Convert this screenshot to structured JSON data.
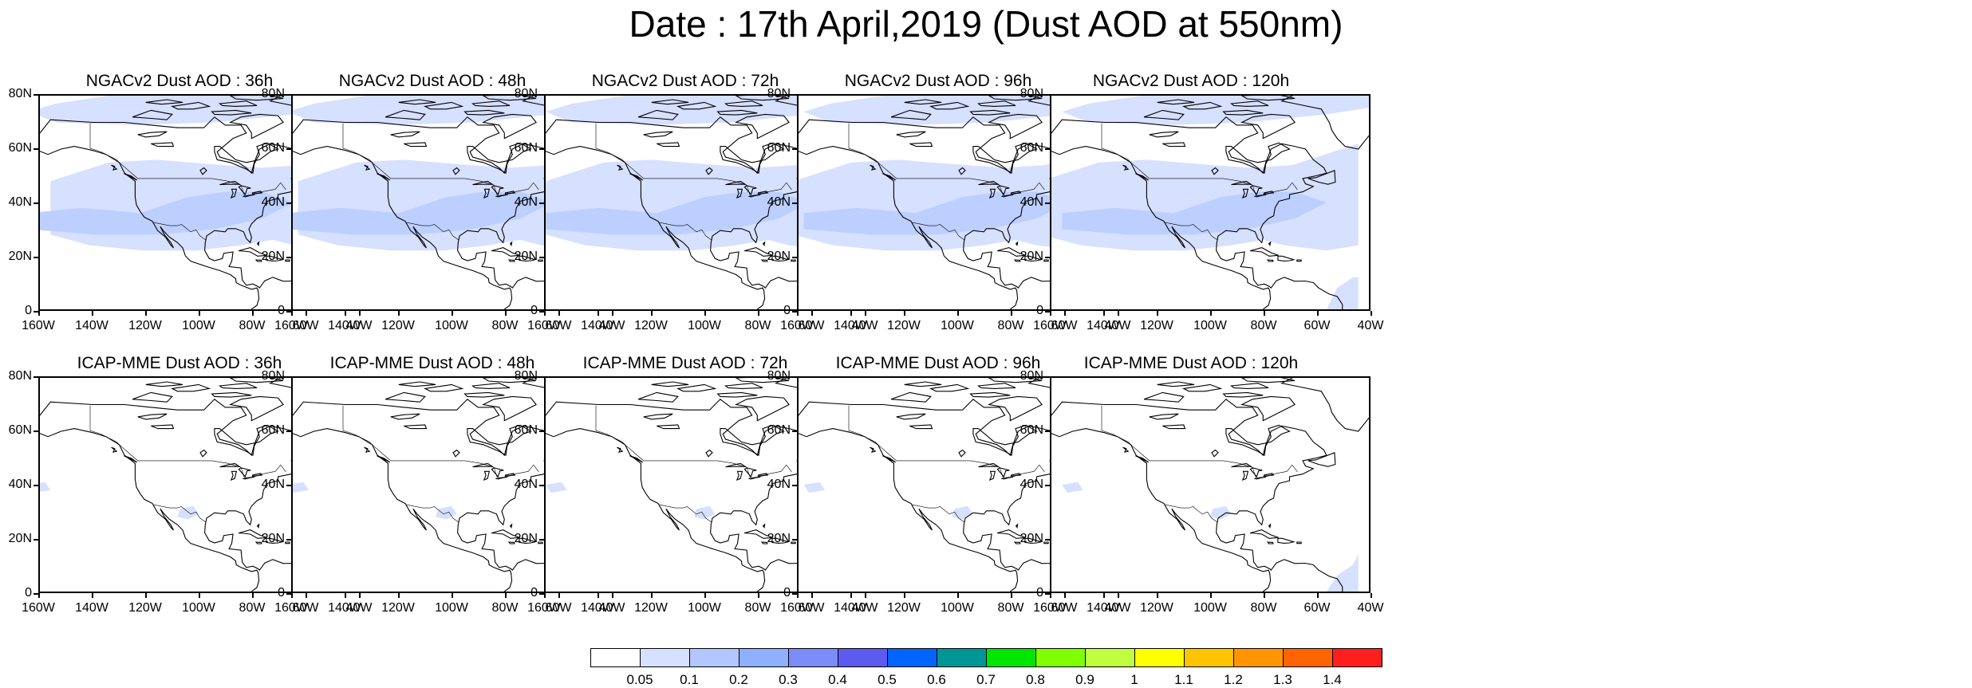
{
  "title": "Date : 17th April,2019 (Dust AOD at 550nm)",
  "y_ticks": [
    "80N",
    "60N",
    "40N",
    "20N",
    "0"
  ],
  "x_ticks": [
    "160W",
    "140W",
    "120W",
    "100W",
    "80W",
    "60W",
    "40W"
  ],
  "map_extent": {
    "lon": [
      -160,
      -40
    ],
    "lat": [
      0,
      80
    ]
  },
  "colors": {
    "coast": "#000000",
    "border": "#000000",
    "dust_low": "#d6e0ff",
    "dust_mid": "#bccfff",
    "dust_high": "#a2b8ff"
  },
  "colorbar": {
    "labels": [
      "0.05",
      "0.1",
      "0.2",
      "0.3",
      "0.4",
      "0.5",
      "0.6",
      "0.7",
      "0.8",
      "0.9",
      "1",
      "1.1",
      "1.2",
      "1.3",
      "1.4"
    ],
    "colors": [
      "#ffffff",
      "#d6e0ff",
      "#b3c6ff",
      "#8fb0ff",
      "#7c8cf8",
      "#5b5bf0",
      "#0064ff",
      "#009696",
      "#00e600",
      "#7fff00",
      "#c0ff40",
      "#ffff00",
      "#ffc400",
      "#ff9600",
      "#ff6400",
      "#ff1e1e"
    ]
  },
  "rows": [
    {
      "model": "NGACv2",
      "panels": [
        {
          "title": "NGACv2 Dust AOD : 36h",
          "lead_hours": 36,
          "dust_coverage": "broad"
        },
        {
          "title": "NGACv2 Dust AOD : 48h",
          "lead_hours": 48,
          "dust_coverage": "broad"
        },
        {
          "title": "NGACv2 Dust AOD : 72h",
          "lead_hours": 72,
          "dust_coverage": "broad"
        },
        {
          "title": "NGACv2 Dust AOD : 96h",
          "lead_hours": 96,
          "dust_coverage": "broad"
        },
        {
          "title": "NGACv2 Dust AOD : 120h",
          "lead_hours": 120,
          "dust_coverage": "broad"
        }
      ]
    },
    {
      "model": "ICAP-MME",
      "panels": [
        {
          "title": "ICAP-MME Dust AOD : 36h",
          "lead_hours": 36,
          "dust_coverage": "sparse"
        },
        {
          "title": "ICAP-MME Dust AOD : 48h",
          "lead_hours": 48,
          "dust_coverage": "sparse"
        },
        {
          "title": "ICAP-MME Dust AOD : 72h",
          "lead_hours": 72,
          "dust_coverage": "sparse"
        },
        {
          "title": "ICAP-MME Dust AOD : 96h",
          "lead_hours": 96,
          "dust_coverage": "sparse"
        },
        {
          "title": "ICAP-MME Dust AOD : 120h",
          "lead_hours": 120,
          "dust_coverage": "sparse"
        }
      ]
    }
  ]
}
